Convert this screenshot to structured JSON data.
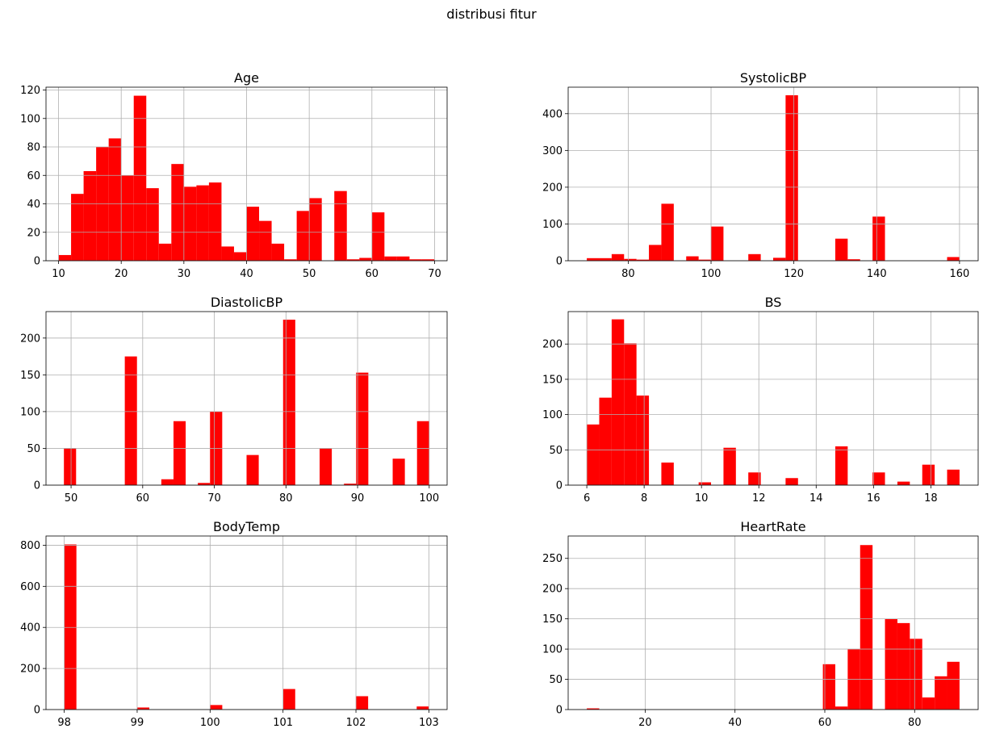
{
  "figure": {
    "suptitle": "distribusi fitur"
  },
  "colors": {
    "bar": "#ff0000",
    "grid": "#b0b0b0",
    "axis": "#000000",
    "background": "#ffffff"
  },
  "chart_data": [
    {
      "type": "bar",
      "title": "Age",
      "bin_edges": [
        10,
        12,
        14,
        16,
        18,
        20,
        22,
        24,
        26,
        28,
        30,
        32,
        34,
        36,
        38,
        40,
        42,
        44,
        46,
        48,
        50,
        52,
        54,
        56,
        58,
        60,
        62,
        64,
        66,
        68,
        70
      ],
      "values": [
        4,
        47,
        63,
        80,
        86,
        60,
        116,
        51,
        12,
        68,
        52,
        53,
        55,
        10,
        6,
        38,
        28,
        12,
        1,
        35,
        44,
        0,
        49,
        1,
        2,
        34,
        3,
        3,
        1,
        1
      ],
      "xlim": [
        8,
        72
      ],
      "ylim": [
        0,
        122
      ],
      "xticks": [
        10,
        20,
        30,
        40,
        50,
        60,
        70
      ],
      "yticks": [
        0,
        20,
        40,
        60,
        80,
        100,
        120
      ],
      "grid": true
    },
    {
      "type": "bar",
      "title": "SystolicBP",
      "bin_edges": [
        70,
        73,
        76,
        79,
        82,
        85,
        88,
        91,
        94,
        97,
        100,
        103,
        106,
        109,
        112,
        115,
        118,
        121,
        124,
        127,
        130,
        133,
        136,
        139,
        142,
        145,
        148,
        151,
        154,
        157,
        160
      ],
      "values": [
        7,
        7,
        18,
        5,
        3,
        43,
        155,
        0,
        12,
        3,
        93,
        0,
        0,
        18,
        0,
        8,
        450,
        0,
        0,
        0,
        60,
        4,
        0,
        120,
        0,
        0,
        0,
        0,
        0,
        10
      ],
      "xlim": [
        65.5,
        164.5
      ],
      "ylim": [
        0,
        472
      ],
      "xticks": [
        80,
        100,
        120,
        140,
        160
      ],
      "yticks": [
        0,
        100,
        200,
        300,
        400
      ],
      "grid": true
    },
    {
      "type": "bar",
      "title": "DiastolicBP",
      "bin_edges": [
        49,
        50.7,
        52.4,
        54.1,
        55.8,
        57.5,
        59.2,
        60.9,
        62.6,
        64.3,
        66,
        67.7,
        69.4,
        71.1,
        72.8,
        74.5,
        76.2,
        77.9,
        79.6,
        81.3,
        83,
        84.7,
        86.4,
        88.1,
        89.8,
        91.5,
        93.2,
        94.9,
        96.6,
        98.3,
        100
      ],
      "values": [
        50,
        0,
        0,
        0,
        0,
        175,
        0,
        0,
        8,
        87,
        0,
        3,
        100,
        0,
        0,
        41,
        0,
        0,
        225,
        0,
        0,
        50,
        0,
        2,
        153,
        0,
        0,
        36,
        0,
        87
      ],
      "xlim": [
        46.5,
        102.5
      ],
      "ylim": [
        0,
        236
      ],
      "xticks": [
        50,
        60,
        70,
        80,
        90,
        100
      ],
      "yticks": [
        0,
        50,
        100,
        150,
        200
      ],
      "grid": true
    },
    {
      "type": "bar",
      "title": "BS",
      "bin_edges": [
        6,
        6.433,
        6.867,
        7.3,
        7.733,
        8.167,
        8.6,
        9.033,
        9.467,
        9.9,
        10.333,
        10.767,
        11.2,
        11.633,
        12.067,
        12.5,
        12.933,
        13.367,
        13.8,
        14.233,
        14.667,
        15.1,
        15.533,
        15.967,
        16.4,
        16.833,
        17.267,
        17.7,
        18.133,
        18.567,
        19
      ],
      "values": [
        86,
        124,
        235,
        201,
        127,
        0,
        32,
        0,
        0,
        4,
        0,
        53,
        0,
        18,
        0,
        0,
        10,
        0,
        0,
        0,
        55,
        0,
        0,
        18,
        0,
        5,
        0,
        29,
        0,
        22
      ],
      "xlim": [
        5.35,
        19.65
      ],
      "ylim": [
        0,
        246
      ],
      "xticks": [
        6,
        8,
        10,
        12,
        14,
        16,
        18
      ],
      "yticks": [
        0,
        50,
        100,
        150,
        200
      ],
      "grid": true
    },
    {
      "type": "bar",
      "title": "BodyTemp",
      "bin_edges": [
        98,
        98.167,
        98.333,
        98.5,
        98.667,
        98.833,
        99,
        99.167,
        99.333,
        99.5,
        99.667,
        99.833,
        100,
        100.167,
        100.333,
        100.5,
        100.667,
        100.833,
        101,
        101.167,
        101.333,
        101.5,
        101.667,
        101.833,
        102,
        102.167,
        102.333,
        102.5,
        102.667,
        102.833,
        103
      ],
      "values": [
        804,
        0,
        0,
        0,
        0,
        0,
        10,
        0,
        0,
        0,
        0,
        0,
        22,
        0,
        0,
        0,
        0,
        0,
        100,
        0,
        0,
        0,
        0,
        0,
        65,
        0,
        0,
        0,
        0,
        15
      ],
      "xlim": [
        97.75,
        103.25
      ],
      "ylim": [
        0,
        845
      ],
      "xticks": [
        98,
        99,
        100,
        101,
        102,
        103
      ],
      "yticks": [
        0,
        200,
        400,
        600,
        800
      ],
      "grid": true
    },
    {
      "type": "bar",
      "title": "HeartRate",
      "bin_edges": [
        7,
        9.767,
        12.533,
        15.3,
        18.067,
        20.833,
        23.6,
        26.367,
        29.133,
        31.9,
        34.667,
        37.433,
        40.2,
        42.967,
        45.733,
        48.5,
        51.267,
        54.033,
        56.8,
        59.567,
        62.333,
        65.1,
        67.867,
        70.633,
        73.4,
        76.167,
        78.933,
        81.7,
        84.467,
        87.233,
        90
      ],
      "values": [
        2,
        0,
        0,
        0,
        0,
        0,
        0,
        0,
        0,
        0,
        0,
        0,
        0,
        0,
        0,
        0,
        0,
        0,
        0,
        75,
        5,
        100,
        272,
        0,
        150,
        143,
        117,
        20,
        55,
        79
      ],
      "xlim": [
        2.85,
        94.15
      ],
      "ylim": [
        0,
        287
      ],
      "xticks": [
        20,
        40,
        60,
        80
      ],
      "yticks": [
        0,
        50,
        100,
        150,
        200,
        250
      ],
      "grid": true
    }
  ]
}
